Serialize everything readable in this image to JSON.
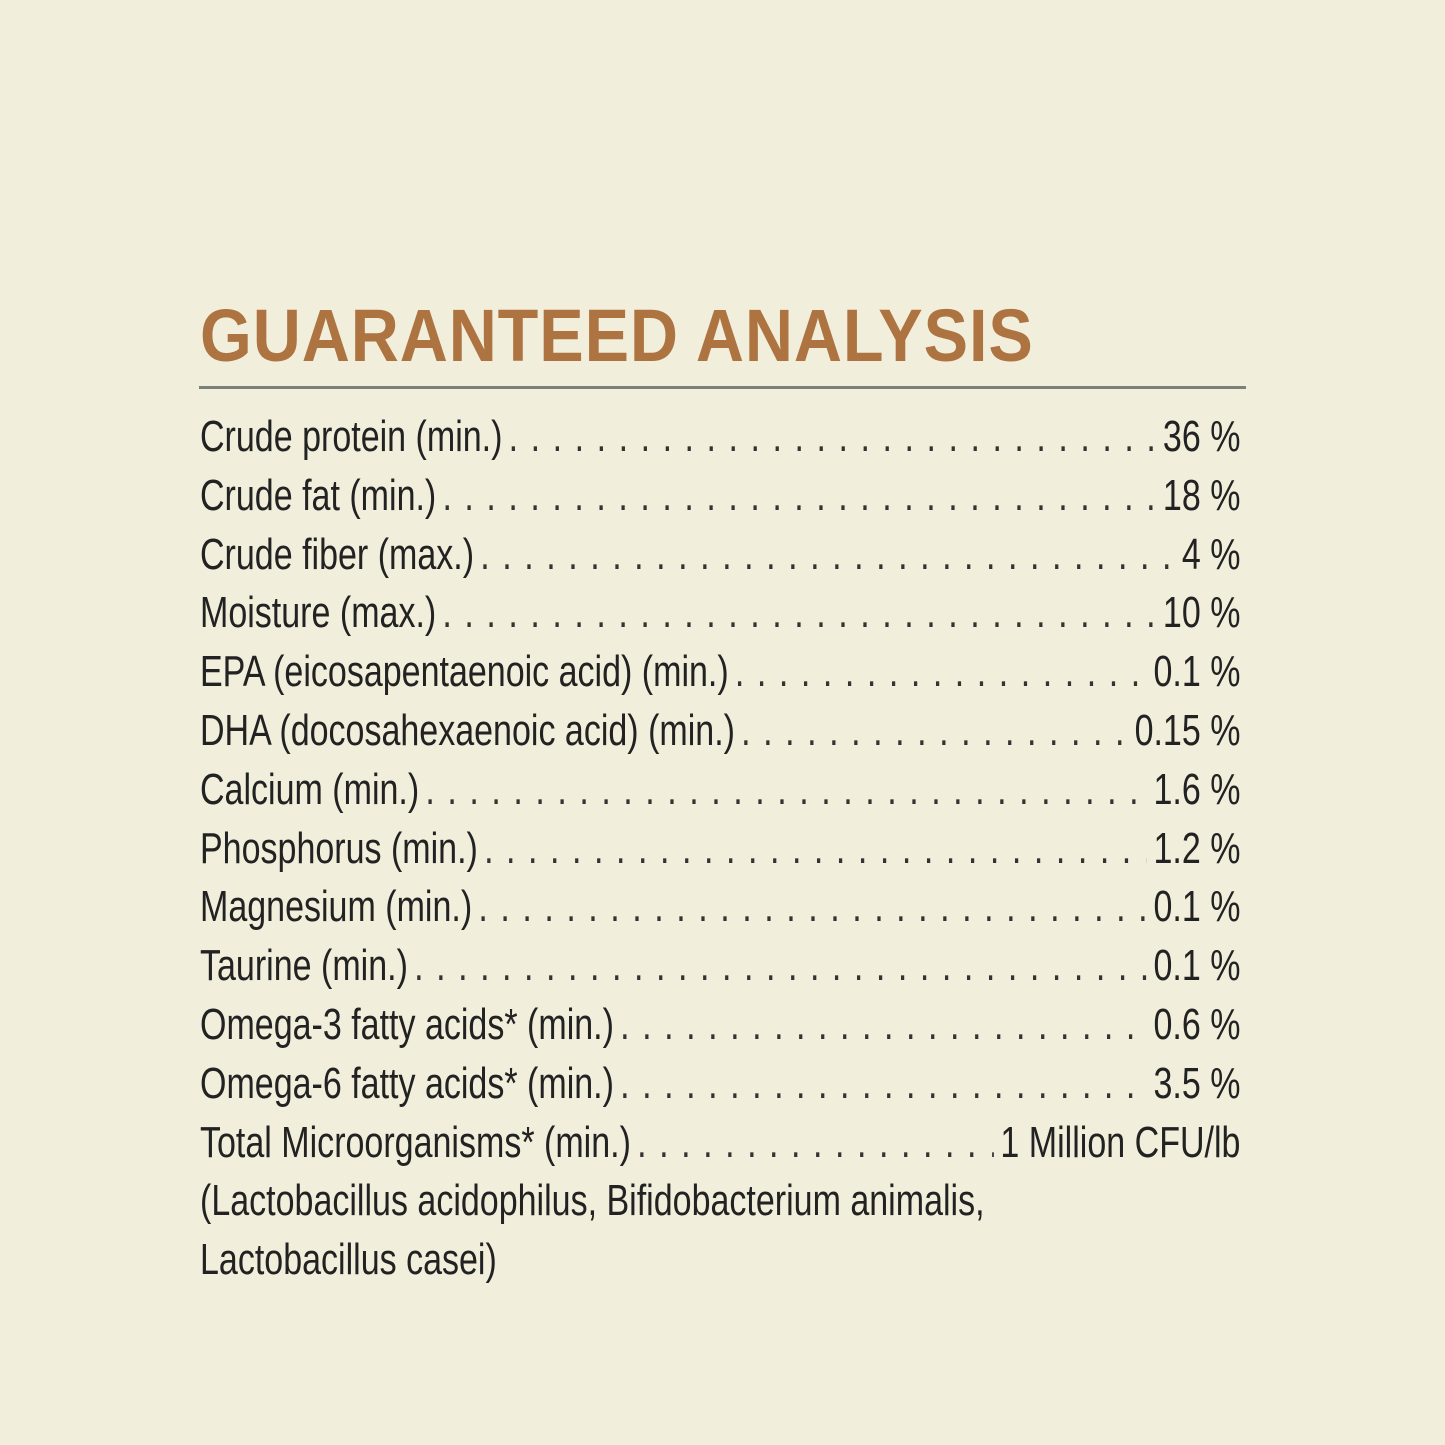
{
  "title": "GUARANTEED ANALYSIS",
  "colors": {
    "background": "#f1eedb",
    "title": "#ad7340",
    "rule": "#7b807b",
    "text": "#222222"
  },
  "rows": [
    {
      "label": "Crude protein (min.)",
      "value": "36 %"
    },
    {
      "label": "Crude fat (min.)",
      "value": "18 %"
    },
    {
      "label": "Crude fiber (max.)",
      "value": "4 %"
    },
    {
      "label": "Moisture (max.)",
      "value": "10 %"
    },
    {
      "label": "EPA (eicosapentaenoic acid) (min.)",
      "value": "0.1 %"
    },
    {
      "label": "DHA (docosahexaenoic acid) (min.)",
      "value": "0.15 %"
    },
    {
      "label": "Calcium (min.)",
      "value": "1.6 %"
    },
    {
      "label": "Phosphorus (min.)",
      "value": "1.2 %"
    },
    {
      "label": "Magnesium (min.)",
      "value": "0.1 %"
    },
    {
      "label": "Taurine (min.)",
      "value": "0.1 %"
    },
    {
      "label": "Omega-3 fatty acids* (min.)",
      "value": "0.6 %"
    },
    {
      "label": "Omega-6 fatty acids* (min.)",
      "value": "3.5 %"
    },
    {
      "label": "Total Microorganisms* (min.)",
      "value": "1 Million CFU/lb"
    }
  ],
  "note_lines": [
    "(Lactobacillus acidophilus, Bifidobacterium animalis,",
    "Lactobacillus casei)"
  ]
}
